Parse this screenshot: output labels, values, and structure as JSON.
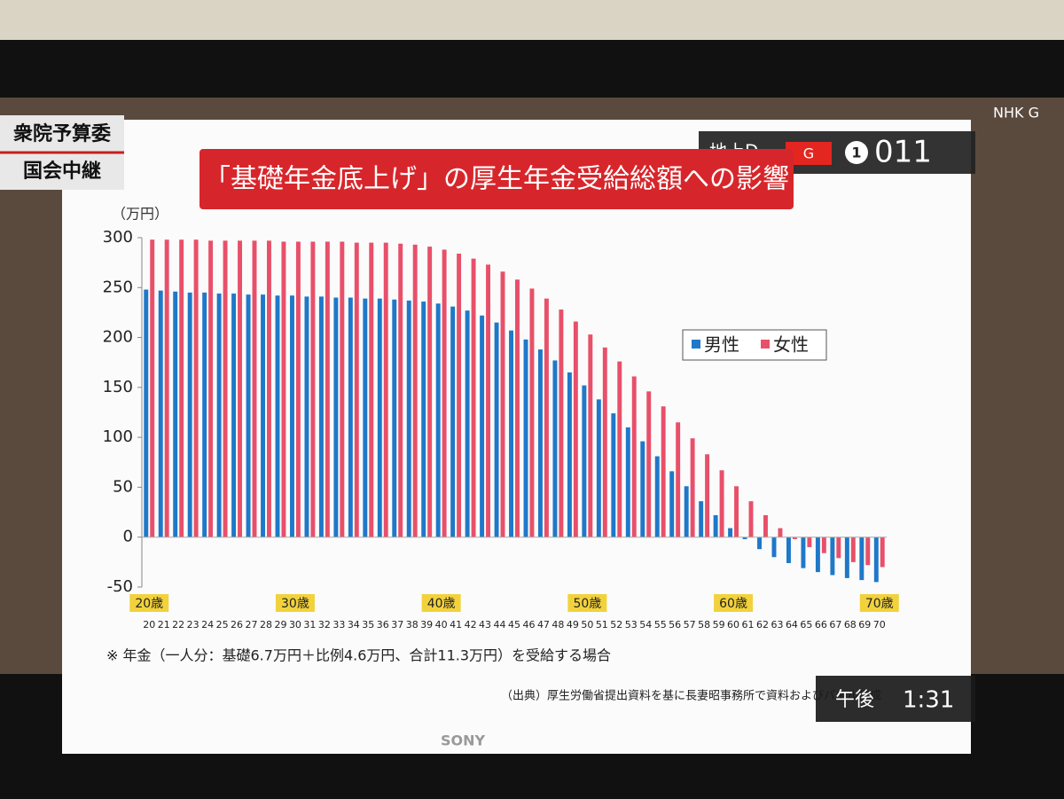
{
  "overlay": {
    "program_top": "衆院予算委",
    "program_bottom": "国会中継",
    "channel_label": "地上D",
    "channel_badge": "G",
    "channel_number": "1",
    "channel_code": "011",
    "time_period": "午後",
    "time": "1:31",
    "network": "NHK G",
    "brand": "SONY"
  },
  "chart_data": {
    "type": "bar",
    "title": "「基礎年金底上げ」の厚生年金受給総額への影響",
    "y_unit": "（万円）",
    "categories": [
      "20",
      "21",
      "22",
      "23",
      "24",
      "25",
      "26",
      "27",
      "28",
      "29",
      "30",
      "31",
      "32",
      "33",
      "34",
      "35",
      "36",
      "37",
      "38",
      "39",
      "40",
      "41",
      "42",
      "43",
      "44",
      "45",
      "46",
      "47",
      "48",
      "49",
      "50",
      "51",
      "52",
      "53",
      "54",
      "55",
      "56",
      "57",
      "58",
      "59",
      "60",
      "61",
      "62",
      "63",
      "64",
      "65",
      "66",
      "67",
      "68",
      "69",
      "70"
    ],
    "series": [
      {
        "name": "男性",
        "color": "#1f78c8",
        "values": [
          248,
          247,
          246,
          245,
          245,
          244,
          244,
          243,
          243,
          242,
          242,
          241,
          241,
          240,
          240,
          239,
          239,
          238,
          237,
          236,
          234,
          231,
          227,
          222,
          215,
          207,
          198,
          188,
          177,
          165,
          152,
          138,
          124,
          110,
          96,
          81,
          66,
          51,
          36,
          22,
          9,
          -2,
          -12,
          -20,
          -26,
          -31,
          -35,
          -38,
          -41,
          -43,
          -45
        ]
      },
      {
        "name": "女性",
        "color": "#e8506a",
        "values": [
          298,
          298,
          298,
          298,
          297,
          297,
          297,
          297,
          297,
          296,
          296,
          296,
          296,
          296,
          295,
          295,
          295,
          294,
          293,
          291,
          288,
          284,
          279,
          273,
          266,
          258,
          249,
          239,
          228,
          216,
          203,
          190,
          176,
          161,
          146,
          131,
          115,
          99,
          83,
          67,
          51,
          36,
          22,
          9,
          -2,
          -10,
          -16,
          -21,
          -25,
          -28,
          -30
        ]
      }
    ],
    "ylim": [
      -50,
      300
    ],
    "yticks": [
      -50,
      0,
      50,
      100,
      150,
      200,
      250,
      300
    ],
    "decade_labels": [
      {
        "text": "20歳",
        "category": "20"
      },
      {
        "text": "30歳",
        "category": "30"
      },
      {
        "text": "40歳",
        "category": "40"
      },
      {
        "text": "50歳",
        "category": "50"
      },
      {
        "text": "60歳",
        "category": "60"
      },
      {
        "text": "70歳",
        "category": "70"
      }
    ],
    "footnote": "※ 年金（一人分：基礎6.7万円＋比例4.6万円、合計11.3万円）を受給する場合",
    "source": "（出典）厚生労働省提出資料を基に長妻昭事務所で資料およびパネル作成"
  }
}
